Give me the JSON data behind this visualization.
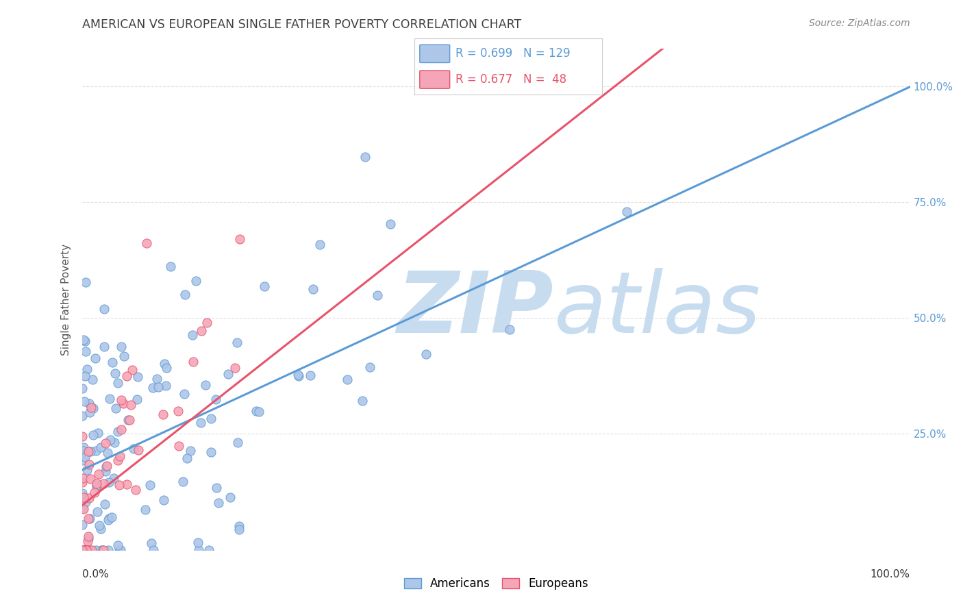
{
  "title": "AMERICAN VS EUROPEAN SINGLE FATHER POVERTY CORRELATION CHART",
  "source": "Source: ZipAtlas.com",
  "ylabel": "Single Father Poverty",
  "yticks": [
    "25.0%",
    "50.0%",
    "75.0%",
    "100.0%"
  ],
  "ytick_vals": [
    0.25,
    0.5,
    0.75,
    1.0
  ],
  "legend_americans": "Americans",
  "legend_europeans": "Europeans",
  "american_color": "#aec6e8",
  "european_color": "#f4a6b8",
  "american_line_color": "#5b9bd5",
  "european_line_color": "#e8536a",
  "watermark_zip_color": "#c8dcf0",
  "watermark_atlas_color": "#c8dcf0",
  "background_color": "#ffffff",
  "grid_color": "#e0e0e0",
  "title_color": "#404040",
  "right_ytick_color": "#5b9bd5",
  "seed": 99
}
